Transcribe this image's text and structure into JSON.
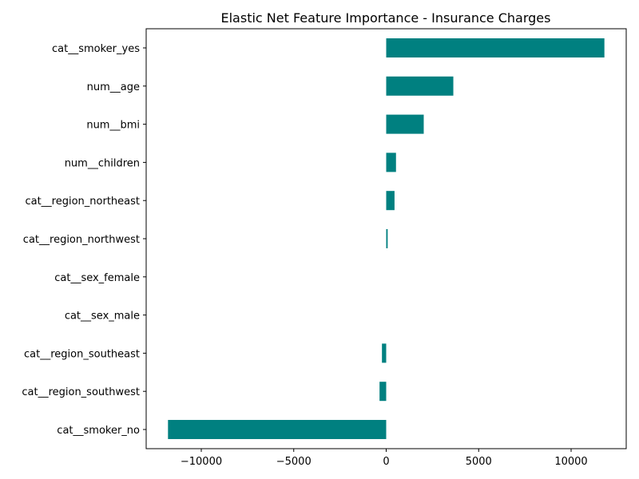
{
  "chart_data": {
    "type": "bar",
    "orientation": "horizontal",
    "title": "Elastic Net Feature Importance - Insurance Charges",
    "xlabel": "",
    "ylabel": "",
    "categories": [
      "cat__smoker_yes",
      "num__age",
      "num__bmi",
      "num__children",
      "cat__region_northeast",
      "cat__region_northwest",
      "cat__sex_female",
      "cat__sex_male",
      "cat__region_southeast",
      "cat__region_southwest",
      "cat__smoker_no"
    ],
    "values": [
      11800,
      3630,
      2030,
      530,
      450,
      80,
      0,
      0,
      -230,
      -360,
      -11800
    ],
    "xlim": [
      -12980,
      12980
    ],
    "xticks": [
      -10000,
      -5000,
      0,
      5000,
      10000
    ],
    "xtick_labels": [
      "−10000",
      "−5000",
      "0",
      "5000",
      "10000"
    ],
    "grid": false,
    "legend": "none",
    "bar_color": "#008080"
  }
}
